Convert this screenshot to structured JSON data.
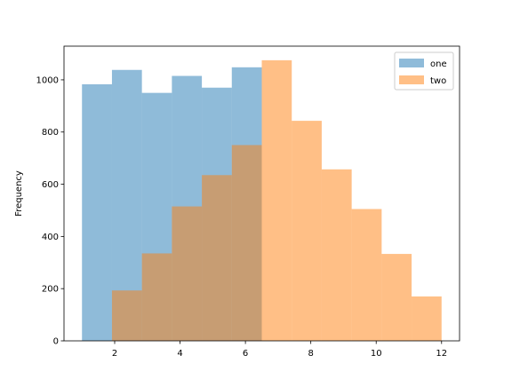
{
  "chart_data": {
    "type": "histogram",
    "ylabel": "Frequency",
    "bins": [
      1,
      1.917,
      2.833,
      3.75,
      4.667,
      5.583,
      6.5,
      7.417,
      8.333,
      9.25,
      10.167,
      11.083,
      12
    ],
    "series": [
      {
        "name": "one",
        "color": "#1f77b4",
        "values": [
          983,
          1038,
          950,
          1015,
          970,
          1048,
          0,
          0,
          0,
          0,
          0,
          0
        ]
      },
      {
        "name": "two",
        "color": "#ff7f0e",
        "values": [
          0,
          193,
          335,
          515,
          635,
          750,
          1075,
          843,
          657,
          505,
          333,
          170
        ]
      }
    ],
    "opacity": 0.5,
    "xlim": [
      0.45,
      12.55
    ],
    "ylim": [
      0,
      1129
    ],
    "xticks": [
      2,
      4,
      6,
      8,
      10,
      12
    ],
    "yticks": [
      0,
      200,
      400,
      600,
      800,
      1000
    ],
    "legend": "upper right"
  }
}
